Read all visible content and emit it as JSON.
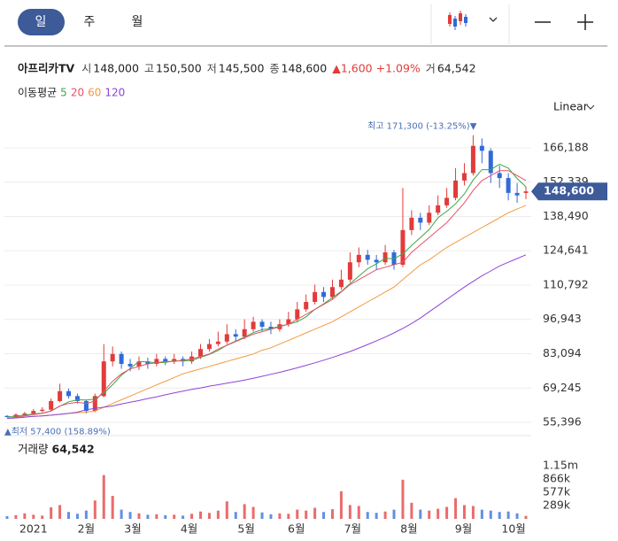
{
  "tabs": [
    "일",
    "주",
    "월"
  ],
  "header": {
    "name": "아프리카TV",
    "quotes": [
      {
        "label": "시",
        "value": "148,000"
      },
      {
        "label": "고",
        "value": "150,500"
      },
      {
        "label": "저",
        "value": "145,500"
      },
      {
        "label": "종",
        "value": "148,600"
      }
    ],
    "change": "▲1,600",
    "change_pct": "+1.09%",
    "volume_label": "거",
    "volume": "64,542"
  },
  "chart_data": {
    "type": "candlestick",
    "scale_label": "Linear",
    "categories": [
      null,
      null,
      null,
      null,
      null,
      null,
      null,
      null,
      null,
      null,
      null,
      null,
      null,
      null,
      null,
      null,
      null,
      null,
      null,
      null,
      null,
      null,
      null,
      null,
      null,
      null,
      null,
      null,
      null,
      null,
      null,
      null,
      null,
      null,
      null,
      null,
      null,
      null,
      null,
      null,
      null,
      null,
      null,
      null,
      null,
      null,
      null,
      null,
      null,
      null,
      null,
      null,
      null,
      null,
      null,
      null,
      null,
      null,
      null,
      null
    ],
    "xticks": [
      {
        "value": 3,
        "label": "2021"
      },
      {
        "value": 9,
        "label": "2월"
      },
      {
        "value": 14.3,
        "label": "3월"
      },
      {
        "value": 20.7,
        "label": "4월"
      },
      {
        "value": 27.2,
        "label": "5월"
      },
      {
        "value": 32.9,
        "label": "6월"
      },
      {
        "value": 39.3,
        "label": "7월"
      },
      {
        "value": 45.7,
        "label": "8월"
      },
      {
        "value": 51.9,
        "label": "9월"
      },
      {
        "value": 57.6,
        "label": "10월"
      }
    ],
    "ylim": [
      50756,
      175826
    ],
    "yticks": [
      {
        "value": 55396,
        "label": "55,396"
      },
      {
        "value": 69245,
        "label": "69,245"
      },
      {
        "value": 83094,
        "label": "83,094"
      },
      {
        "value": 96943,
        "label": "96,943"
      },
      {
        "value": 110792,
        "label": "110,792"
      },
      {
        "value": 124641,
        "label": "124,641"
      },
      {
        "value": 138490,
        "label": "138,490"
      },
      {
        "value": 152339,
        "label": "152,339"
      },
      {
        "value": 166188,
        "label": "166,188"
      }
    ],
    "grid": true,
    "up_color": "#e23b3b",
    "down_color": "#2f6bd8",
    "open": [
      58000,
      57500,
      58500,
      59000,
      60000,
      60500,
      64000,
      68000,
      66000,
      64000,
      60000,
      66000,
      80000,
      83000,
      79000,
      78000,
      80000,
      79000,
      81000,
      80000,
      81000,
      80000,
      82000,
      85000,
      87000,
      88000,
      91000,
      90000,
      93000,
      96000,
      94000,
      93000,
      95000,
      97000,
      101000,
      104000,
      108000,
      106000,
      110000,
      113000,
      120000,
      123000,
      121000,
      120000,
      124000,
      119000,
      133000,
      138000,
      136000,
      140000,
      143000,
      146000,
      153000,
      156000,
      167000,
      165000,
      156000,
      154000,
      148000,
      148000
    ],
    "high": [
      58300,
      59000,
      59600,
      60800,
      61500,
      65000,
      71000,
      69000,
      67000,
      64500,
      67000,
      87000,
      86000,
      84000,
      81000,
      82000,
      81500,
      83000,
      82000,
      83000,
      82000,
      84000,
      87000,
      89000,
      92000,
      95000,
      93000,
      97000,
      98000,
      97000,
      96000,
      97000,
      100000,
      104000,
      107000,
      111000,
      110000,
      113000,
      117000,
      124000,
      126000,
      125000,
      123000,
      127000,
      125000,
      150000,
      141000,
      140000,
      143000,
      147000,
      150000,
      158000,
      160000,
      171300,
      170000,
      166000,
      159000,
      156000,
      152000,
      150500
    ],
    "low": [
      57400,
      57600,
      58000,
      58600,
      59500,
      60000,
      63500,
      65000,
      63000,
      59000,
      59500,
      65500,
      78000,
      77000,
      76000,
      76500,
      77000,
      78000,
      78500,
      79000,
      78000,
      79000,
      81000,
      84000,
      86000,
      87000,
      88000,
      89000,
      92000,
      92000,
      91000,
      92000,
      94000,
      96000,
      100000,
      103000,
      104000,
      105000,
      109000,
      112000,
      118000,
      119000,
      117000,
      119000,
      117000,
      118000,
      131000,
      133000,
      135000,
      139000,
      142000,
      145000,
      151000,
      155000,
      160000,
      152000,
      150000,
      145000,
      144000,
      145500
    ],
    "close": [
      57500,
      58500,
      59000,
      60000,
      60500,
      64000,
      68000,
      66000,
      64000,
      60000,
      66000,
      80000,
      83000,
      79000,
      78000,
      80000,
      79000,
      81000,
      80000,
      81000,
      80000,
      82000,
      85000,
      87000,
      88000,
      91000,
      90000,
      93000,
      96000,
      94000,
      93000,
      95000,
      97000,
      101000,
      104000,
      108000,
      106000,
      110000,
      113000,
      120000,
      123000,
      121000,
      120000,
      124000,
      119000,
      133000,
      138000,
      136000,
      140000,
      143000,
      146000,
      153000,
      156000,
      167000,
      165000,
      156000,
      154000,
      148000,
      147000,
      148600
    ],
    "legend_title": "이동평균",
    "series": [
      {
        "name": "5",
        "color": "#3aa845",
        "values": [
          57500,
          58000,
          58300,
          58800,
          59100,
          60000,
          61900,
          63700,
          64500,
          64400,
          64800,
          67200,
          70600,
          74400,
          77200,
          80000,
          79800,
          79400,
          79600,
          80200,
          80200,
          80400,
          81600,
          82800,
          84400,
          86600,
          88200,
          89800,
          91600,
          92800,
          93200,
          94200,
          95000,
          96000,
          98000,
          101000,
          103200,
          105800,
          108200,
          111400,
          114400,
          117400,
          119400,
          121600,
          121400,
          123400,
          126800,
          130000,
          133200,
          138000,
          140600,
          143600,
          147600,
          153200,
          157400,
          157400,
          159600,
          158000,
          153800,
          150500
        ]
      },
      {
        "name": "20",
        "color": "#e8506a",
        "values": [
          57000,
          57500,
          58000,
          58500,
          59000,
          60000,
          62000,
          63000,
          63500,
          63000,
          64000,
          68000,
          72000,
          75000,
          77000,
          78000,
          79000,
          79500,
          80000,
          80000,
          80500,
          81000,
          82000,
          83000,
          85000,
          86500,
          88000,
          89500,
          91000,
          92000,
          93000,
          94000,
          95000,
          97000,
          99000,
          101000,
          103000,
          105000,
          108000,
          111000,
          113000,
          115000,
          117000,
          118000,
          119000,
          120000,
          124000,
          127000,
          130000,
          133000,
          136000,
          140000,
          144000,
          149000,
          153000,
          155000,
          157000,
          157000,
          155000,
          153000
        ]
      },
      {
        "name": "60",
        "color": "#f29a3d",
        "values": [
          57000,
          57200,
          57500,
          57800,
          58000,
          58300,
          58700,
          59000,
          59300,
          59500,
          60000,
          61500,
          63000,
          64500,
          66000,
          67500,
          69000,
          70500,
          72000,
          73500,
          75000,
          76000,
          77000,
          78000,
          79000,
          80000,
          81000,
          82000,
          83000,
          84500,
          85500,
          87000,
          88500,
          90000,
          91500,
          93000,
          94500,
          96000,
          98000,
          100000,
          102000,
          104000,
          106000,
          108000,
          110000,
          113000,
          116000,
          119000,
          121000,
          123500,
          126000,
          128000,
          130000,
          132000,
          134000,
          136000,
          138000,
          140000,
          141500,
          143000
        ]
      },
      {
        "name": "120",
        "color": "#8e44d8",
        "values": [
          57000,
          57200,
          57500,
          57800,
          58000,
          58300,
          58600,
          59000,
          59500,
          60500,
          61000,
          61500,
          62000,
          62800,
          63500,
          64200,
          65000,
          65700,
          66500,
          67300,
          68000,
          68700,
          69300,
          70000,
          70600,
          71200,
          71800,
          72500,
          73200,
          74000,
          74800,
          75600,
          76500,
          77400,
          78400,
          79400,
          80500,
          81600,
          82800,
          84000,
          85400,
          86800,
          88300,
          89800,
          91500,
          93300,
          95300,
          97500,
          100000,
          102500,
          105000,
          107500,
          110000,
          112300,
          114500,
          116500,
          118500,
          120000,
          121500,
          123000
        ]
      }
    ],
    "annotations": {
      "high": "최고 171,300 (-13.25%)▼",
      "low": "▲최저 57,400 (158.89%)"
    },
    "last_price_label": "148,600",
    "volume": {
      "title": "거래량",
      "caption": "64,542",
      "ylim": [
        0,
        1750000
      ],
      "yticks": [
        {
          "value": 289000,
          "label": "289k"
        },
        {
          "value": 577000,
          "label": "577k"
        },
        {
          "value": 866000,
          "label": "866k"
        },
        {
          "value": 1150000,
          "label": "1.15m"
        }
      ],
      "values": [
        60000,
        80000,
        120000,
        90000,
        70000,
        250000,
        300000,
        150000,
        110000,
        180000,
        400000,
        950000,
        500000,
        200000,
        150000,
        120000,
        90000,
        100000,
        80000,
        90000,
        70000,
        110000,
        160000,
        130000,
        180000,
        380000,
        150000,
        320000,
        260000,
        140000,
        100000,
        120000,
        110000,
        200000,
        180000,
        240000,
        150000,
        210000,
        600000,
        300000,
        280000,
        150000,
        130000,
        160000,
        200000,
        850000,
        350000,
        200000,
        180000,
        220000,
        260000,
        450000,
        300000,
        280000,
        200000,
        180000,
        150000,
        160000,
        120000,
        64542
      ]
    }
  }
}
